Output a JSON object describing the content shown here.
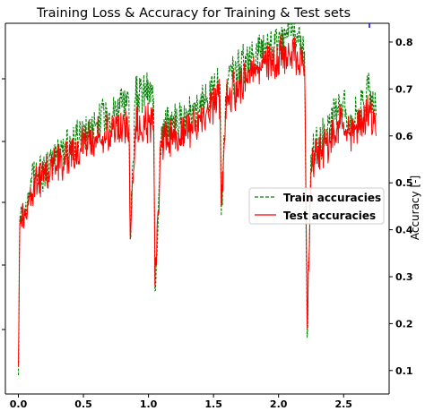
{
  "chart_data": {
    "type": "line",
    "title": "Training Loss & Accuracy for Training & Test sets",
    "xlabel": "",
    "ylabel": "Accuracy [-]",
    "xlim": [
      -0.1,
      2.85
    ],
    "ylim": [
      0.05,
      0.84
    ],
    "x_ticks": [
      0.0,
      0.5,
      1.0,
      1.5,
      2.0,
      2.5
    ],
    "x_tick_labels": [
      "0.0",
      "0.5",
      "1.0",
      "1.5",
      "2.0",
      "2.5"
    ],
    "y_ticks": [
      0.1,
      0.2,
      0.3,
      0.4,
      0.5,
      0.6,
      0.7,
      0.8
    ],
    "y_tick_labels": [
      "0.1",
      "0.2",
      "0.3",
      "0.4",
      "0.5",
      "0.6",
      "0.7",
      "0.8"
    ],
    "grid": false,
    "legend_position": "center-right",
    "colors": {
      "train": "#008000",
      "test": "#ff0000",
      "loss_marker": "#0000ff"
    },
    "series": [
      {
        "name": "Train accuracies",
        "style": "dashed",
        "x": [
          0.0,
          0.01,
          0.02,
          0.05,
          0.08,
          0.1,
          0.15,
          0.2,
          0.3,
          0.4,
          0.5,
          0.6,
          0.7,
          0.8,
          0.85,
          0.86,
          0.9,
          1.0,
          1.04,
          1.05,
          1.1,
          1.2,
          1.3,
          1.4,
          1.5,
          1.55,
          1.56,
          1.6,
          1.7,
          1.8,
          1.9,
          1.95,
          2.0,
          2.1,
          2.2,
          2.22,
          2.25,
          2.3,
          2.4,
          2.45,
          2.5,
          2.55,
          2.6,
          2.65,
          2.7,
          2.75
        ],
        "y": [
          0.09,
          0.42,
          0.45,
          0.44,
          0.48,
          0.5,
          0.52,
          0.53,
          0.56,
          0.58,
          0.6,
          0.63,
          0.65,
          0.67,
          0.68,
          0.38,
          0.68,
          0.7,
          0.68,
          0.27,
          0.62,
          0.63,
          0.64,
          0.66,
          0.7,
          0.71,
          0.43,
          0.71,
          0.74,
          0.77,
          0.8,
          0.79,
          0.81,
          0.82,
          0.78,
          0.17,
          0.56,
          0.58,
          0.62,
          0.66,
          0.68,
          0.63,
          0.65,
          0.67,
          0.7,
          0.64
        ]
      },
      {
        "name": "Test accuracies",
        "style": "solid",
        "x": [
          0.0,
          0.01,
          0.02,
          0.05,
          0.08,
          0.1,
          0.15,
          0.2,
          0.3,
          0.4,
          0.5,
          0.6,
          0.7,
          0.8,
          0.85,
          0.86,
          0.9,
          1.0,
          1.04,
          1.05,
          1.1,
          1.2,
          1.3,
          1.4,
          1.5,
          1.55,
          1.56,
          1.6,
          1.7,
          1.8,
          1.9,
          1.95,
          2.0,
          2.1,
          2.2,
          2.22,
          2.25,
          2.3,
          2.4,
          2.45,
          2.5,
          2.55,
          2.6,
          2.65,
          2.7,
          2.75
        ],
        "y": [
          0.11,
          0.4,
          0.43,
          0.43,
          0.46,
          0.48,
          0.5,
          0.52,
          0.54,
          0.56,
          0.58,
          0.6,
          0.61,
          0.62,
          0.62,
          0.38,
          0.62,
          0.63,
          0.62,
          0.28,
          0.59,
          0.6,
          0.61,
          0.63,
          0.67,
          0.68,
          0.45,
          0.68,
          0.71,
          0.74,
          0.76,
          0.75,
          0.77,
          0.78,
          0.75,
          0.19,
          0.53,
          0.56,
          0.59,
          0.62,
          0.63,
          0.6,
          0.62,
          0.64,
          0.66,
          0.6
        ]
      }
    ]
  }
}
